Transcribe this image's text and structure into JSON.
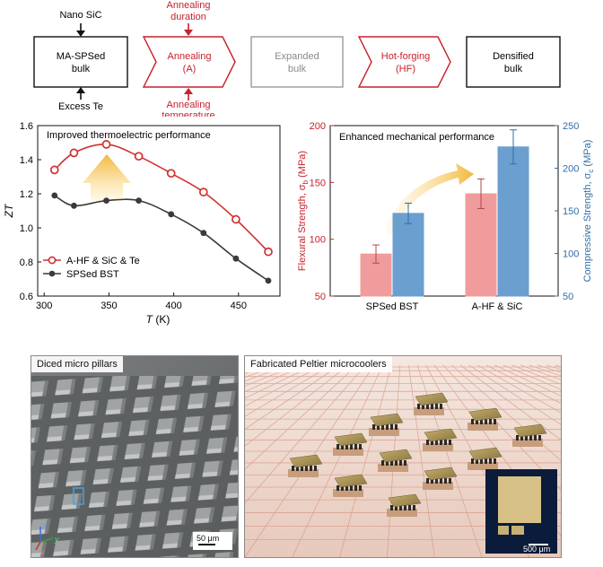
{
  "flow": {
    "top_input": "Nano SiC",
    "bottom_input": "Excess Te",
    "step1": [
      "MA-SPSed",
      "bulk"
    ],
    "step2": [
      "Annealing",
      "(A)"
    ],
    "step2_top": [
      "Annealing",
      "duration"
    ],
    "step2_bottom": [
      "Annealing",
      "temperature"
    ],
    "step3": [
      "Expanded",
      "bulk"
    ],
    "step4": [
      "Hot-forging",
      "(HF)"
    ],
    "step5": [
      "Densified",
      "bulk"
    ],
    "colors": {
      "red": "#c8202c",
      "gray": "#9a9a9a",
      "black": "#111111"
    }
  },
  "chart_data": [
    {
      "type": "line",
      "title": "Improved thermoelectric performance",
      "xlabel_var": "T",
      "xlabel_unit": "(K)",
      "ylabel": "ZT",
      "xlim": [
        295,
        482
      ],
      "ylim": [
        0.6,
        1.6
      ],
      "xticks": [
        300,
        350,
        400,
        450
      ],
      "yticks": [
        0.6,
        0.8,
        1.0,
        1.2,
        1.4,
        1.6
      ],
      "series": [
        {
          "name": "A-HF & SiC & Te",
          "marker": "open-circle",
          "color": "#d0312d",
          "x": [
            308,
            323,
            348,
            373,
            398,
            423,
            448,
            473
          ],
          "y": [
            1.34,
            1.44,
            1.49,
            1.42,
            1.32,
            1.21,
            1.05,
            0.86
          ]
        },
        {
          "name": "SPSed BST",
          "marker": "filled-circle",
          "color": "#3a3a3a",
          "x": [
            308,
            323,
            348,
            373,
            398,
            423,
            448,
            473
          ],
          "y": [
            1.19,
            1.13,
            1.16,
            1.16,
            1.08,
            0.97,
            0.82,
            0.69
          ]
        }
      ],
      "legend": "bottom-left"
    },
    {
      "type": "bar",
      "title": "Enhanced mechanical performance",
      "categories": [
        "SPSed BST",
        "A-HF & SiC"
      ],
      "ylabel_left": "Flexural Strength, σ",
      "ylabel_left_sub": "b",
      "ylabel_left_unit": " (MPa)",
      "ylabel_right": "Compressive Strength, σ",
      "ylabel_right_sub": "c",
      "ylabel_right_unit": " (MPa)",
      "ylim_left": [
        50,
        200
      ],
      "yticks_left": [
        50,
        100,
        150,
        200
      ],
      "ylim_right": [
        50,
        250
      ],
      "yticks_right": [
        50,
        100,
        150,
        200,
        250
      ],
      "series": [
        {
          "name": "Flexural",
          "axis": "left",
          "color": "#f19c9c",
          "values": [
            87,
            140
          ],
          "errors": [
            8,
            13
          ]
        },
        {
          "name": "Compressive",
          "axis": "right",
          "color": "#6a9fd0",
          "values": [
            147,
            225
          ],
          "errors": [
            12,
            20
          ]
        }
      ],
      "left_axis_color": "#c8202c",
      "right_axis_color": "#2f6fa8"
    }
  ],
  "images": {
    "pillars": {
      "label": "Diced micro pillars",
      "scalebar": "50 μm",
      "axis_x": "x",
      "axis_y": "y",
      "axis_z": "z"
    },
    "peltier": {
      "label": "Fabricated Peltier microcoolers",
      "scalebar": "500 μm"
    }
  }
}
